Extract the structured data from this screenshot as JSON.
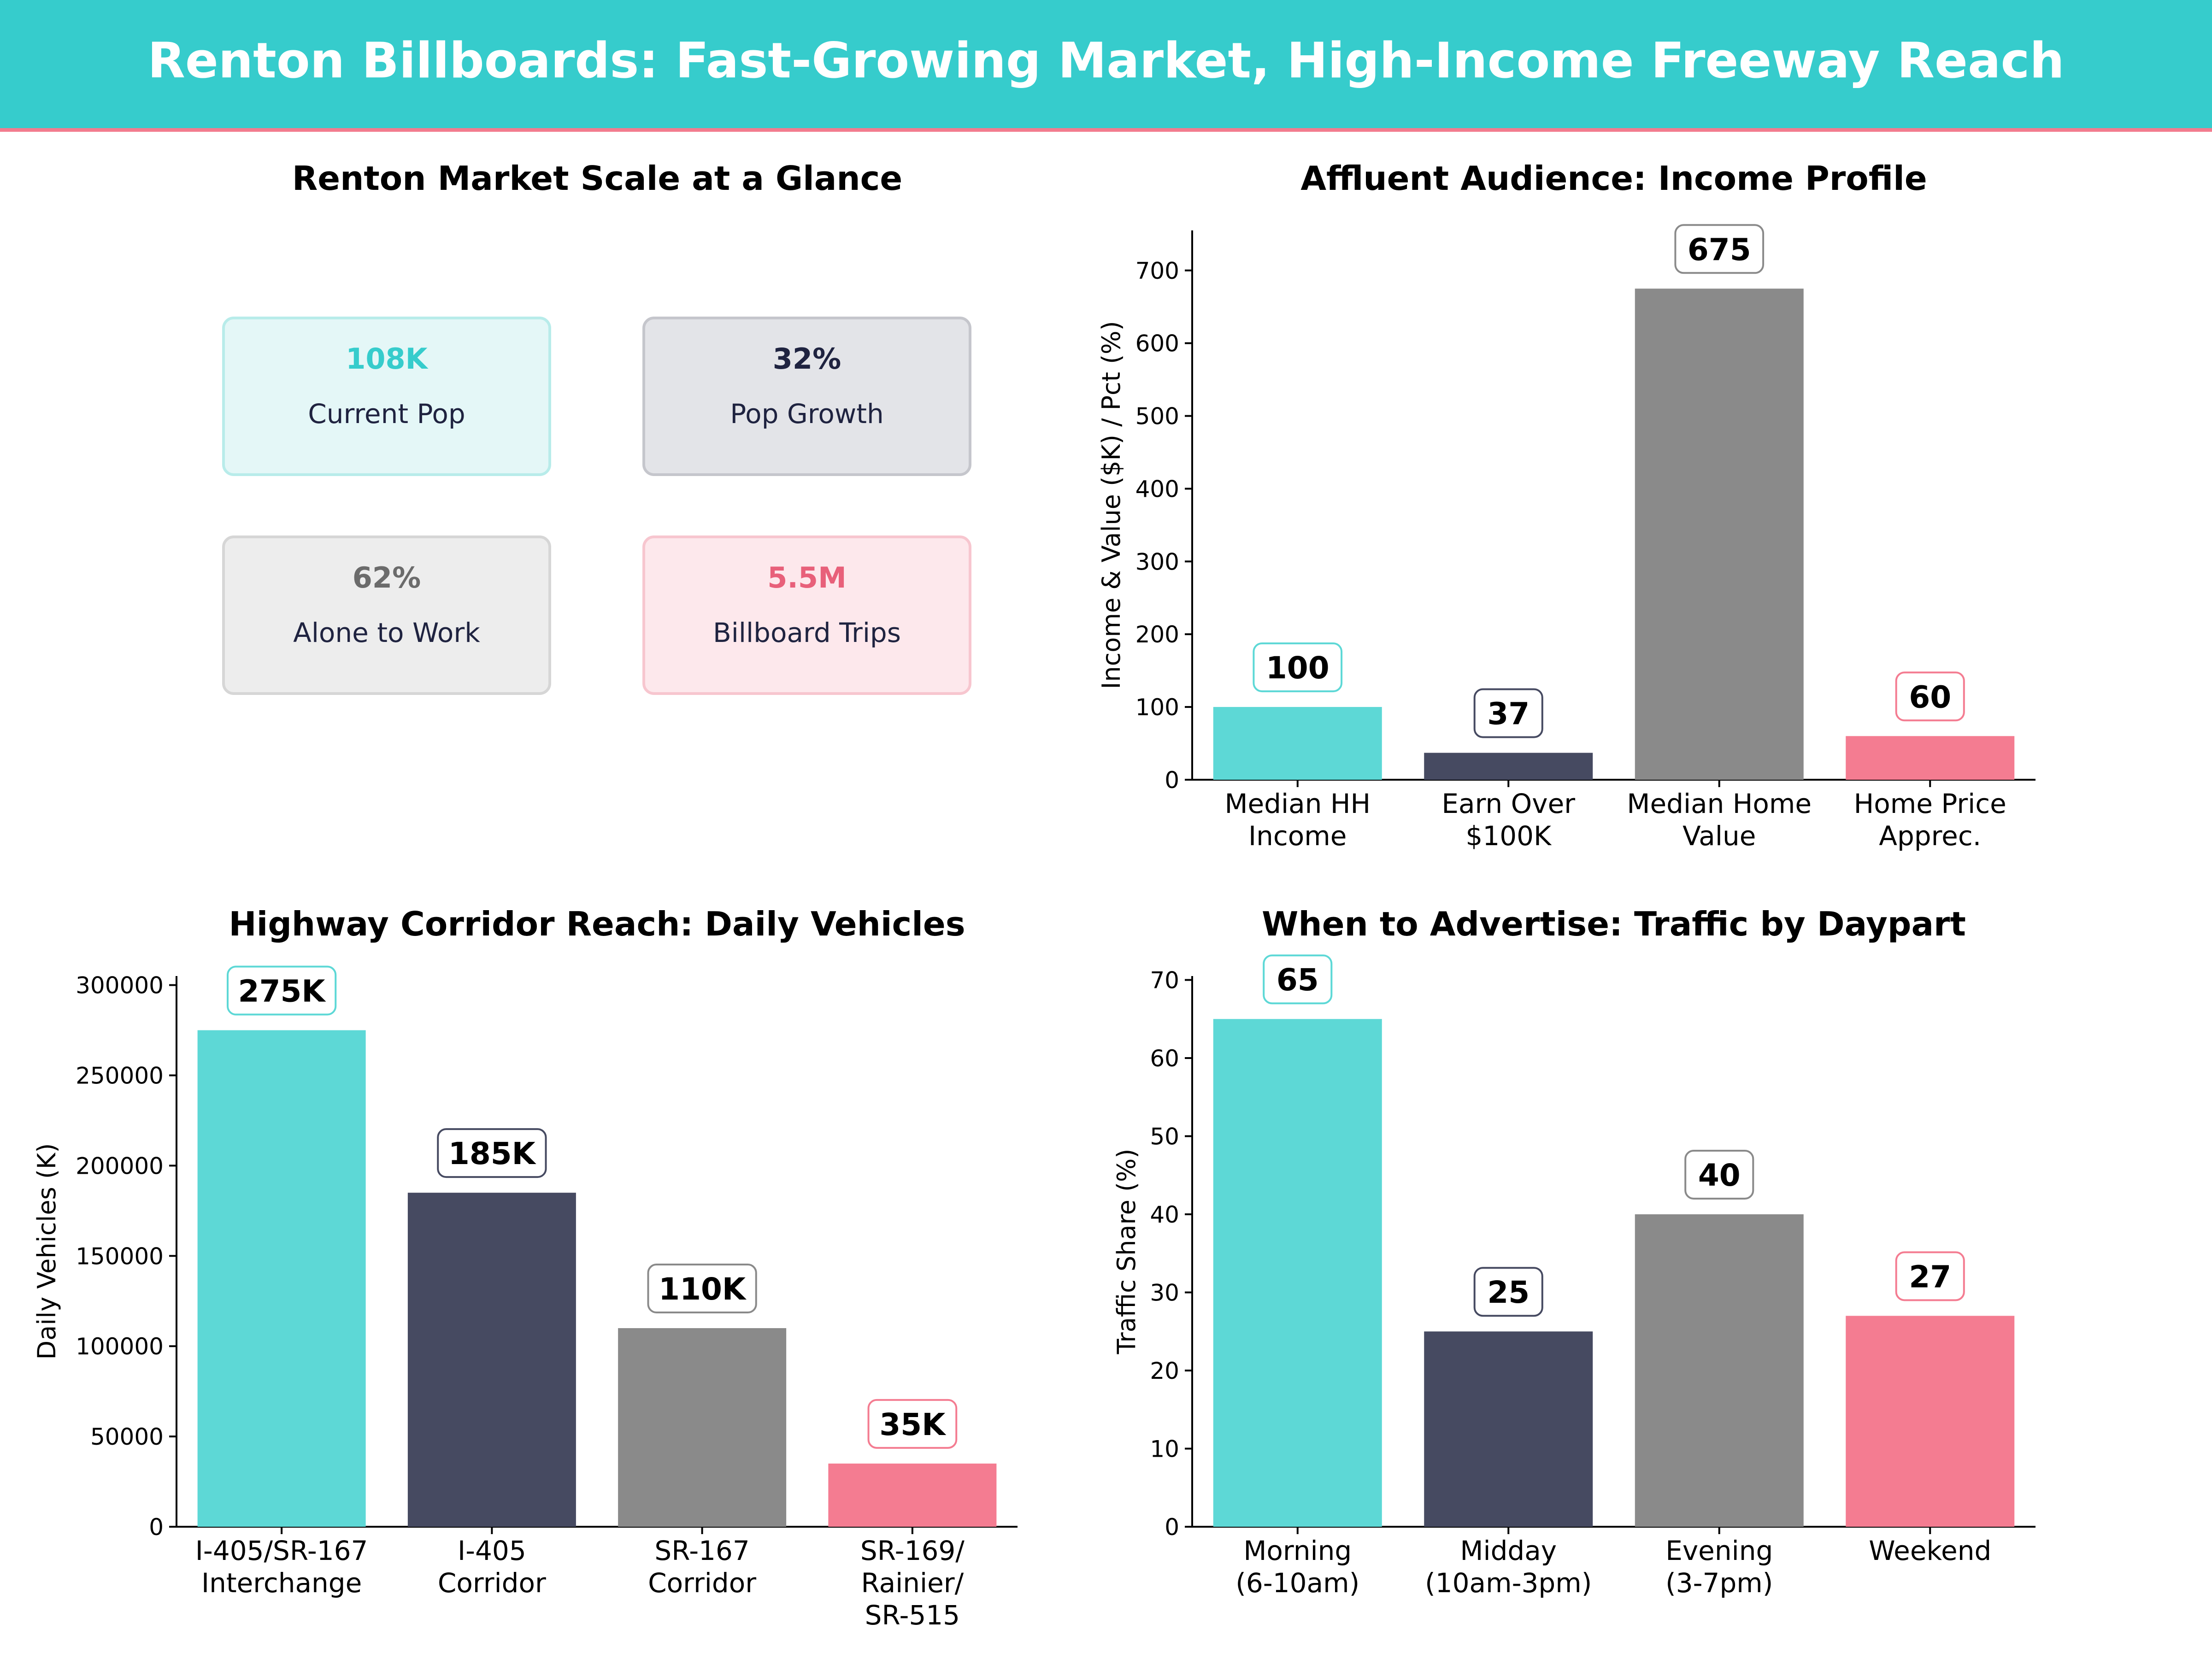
{
  "header": {
    "title": "Renton Billboards: Fast-Growing Market, High-Income Freeway Reach"
  },
  "colors": {
    "header_bg": "#36cccc",
    "header_rule": "#f27c8e",
    "teal": "#5dd8d6",
    "navy": "#464a61",
    "gray": "#8a8a8a",
    "pink": "#f47c91",
    "kpi_text_navy": "#1f2340",
    "kpi_value_pink": "#e8607a",
    "kpi_value_gray": "#6b6b6b"
  },
  "kpi_panel": {
    "title": "Renton Market Scale at a Glance",
    "cards": [
      {
        "value": "108K",
        "label": "Current Pop",
        "accent": "teal"
      },
      {
        "value": "32%",
        "label": "Pop Growth",
        "accent": "navy"
      },
      {
        "value": "62%",
        "label": "Alone to Work",
        "accent": "gray"
      },
      {
        "value": "5.5M",
        "label": "Billboard Trips",
        "accent": "pink"
      }
    ]
  },
  "chart_data": [
    {
      "type": "bar",
      "title": "Affluent Audience: Income Profile",
      "xlabel": "",
      "ylabel": "Income & Value ($K) / Pct (%)",
      "categories": [
        [
          "Median HH",
          "Income"
        ],
        [
          "Earn Over",
          "$100K"
        ],
        [
          "Median Home",
          "Value"
        ],
        [
          "Home Price",
          "Apprec."
        ]
      ],
      "values": [
        100,
        37,
        675,
        60
      ],
      "data_labels": [
        "100",
        "37",
        "675",
        "60"
      ],
      "bar_colors": [
        "teal",
        "navy",
        "gray",
        "pink"
      ],
      "ylim": [
        0,
        755
      ],
      "yticks": [
        0,
        100,
        200,
        300,
        400,
        500,
        600,
        700
      ],
      "ytick_labels": [
        "0",
        "100",
        "200",
        "300",
        "400",
        "500",
        "600",
        "700"
      ],
      "grid": false
    },
    {
      "type": "bar",
      "title": "Highway Corridor Reach: Daily Vehicles",
      "xlabel": "",
      "ylabel": "Daily Vehicles (K)",
      "categories": [
        [
          "I-405/SR-167",
          "Interchange"
        ],
        [
          "I-405",
          "Corridor"
        ],
        [
          "SR-167",
          "Corridor"
        ],
        [
          "SR-169/",
          "Rainier/",
          "SR-515"
        ]
      ],
      "values": [
        275000,
        185000,
        110000,
        35000
      ],
      "data_labels": [
        "275K",
        "185K",
        "110K",
        "35K"
      ],
      "bar_colors": [
        "teal",
        "navy",
        "gray",
        "pink"
      ],
      "ylim": [
        0,
        305000
      ],
      "yticks": [
        0,
        50000,
        100000,
        150000,
        200000,
        250000,
        300000
      ],
      "ytick_labels": [
        "0",
        "50000",
        "100000",
        "150000",
        "200000",
        "250000",
        "300000"
      ],
      "grid": false
    },
    {
      "type": "bar",
      "title": "When to Advertise: Traffic by Daypart",
      "xlabel": "",
      "ylabel": "Traffic Share (%)",
      "categories": [
        [
          "Morning",
          "(6-10am)"
        ],
        [
          "Midday",
          "(10am-3pm)"
        ],
        [
          "Evening",
          "(3-7pm)"
        ],
        [
          "Weekend"
        ]
      ],
      "values": [
        65,
        25,
        40,
        27
      ],
      "data_labels": [
        "65",
        "25",
        "40",
        "27"
      ],
      "bar_colors": [
        "teal",
        "navy",
        "gray",
        "pink"
      ],
      "ylim": [
        0,
        70.5
      ],
      "yticks": [
        0,
        10,
        20,
        30,
        40,
        50,
        60,
        70
      ],
      "ytick_labels": [
        "0",
        "10",
        "20",
        "30",
        "40",
        "50",
        "60",
        "70"
      ],
      "grid": false
    }
  ]
}
